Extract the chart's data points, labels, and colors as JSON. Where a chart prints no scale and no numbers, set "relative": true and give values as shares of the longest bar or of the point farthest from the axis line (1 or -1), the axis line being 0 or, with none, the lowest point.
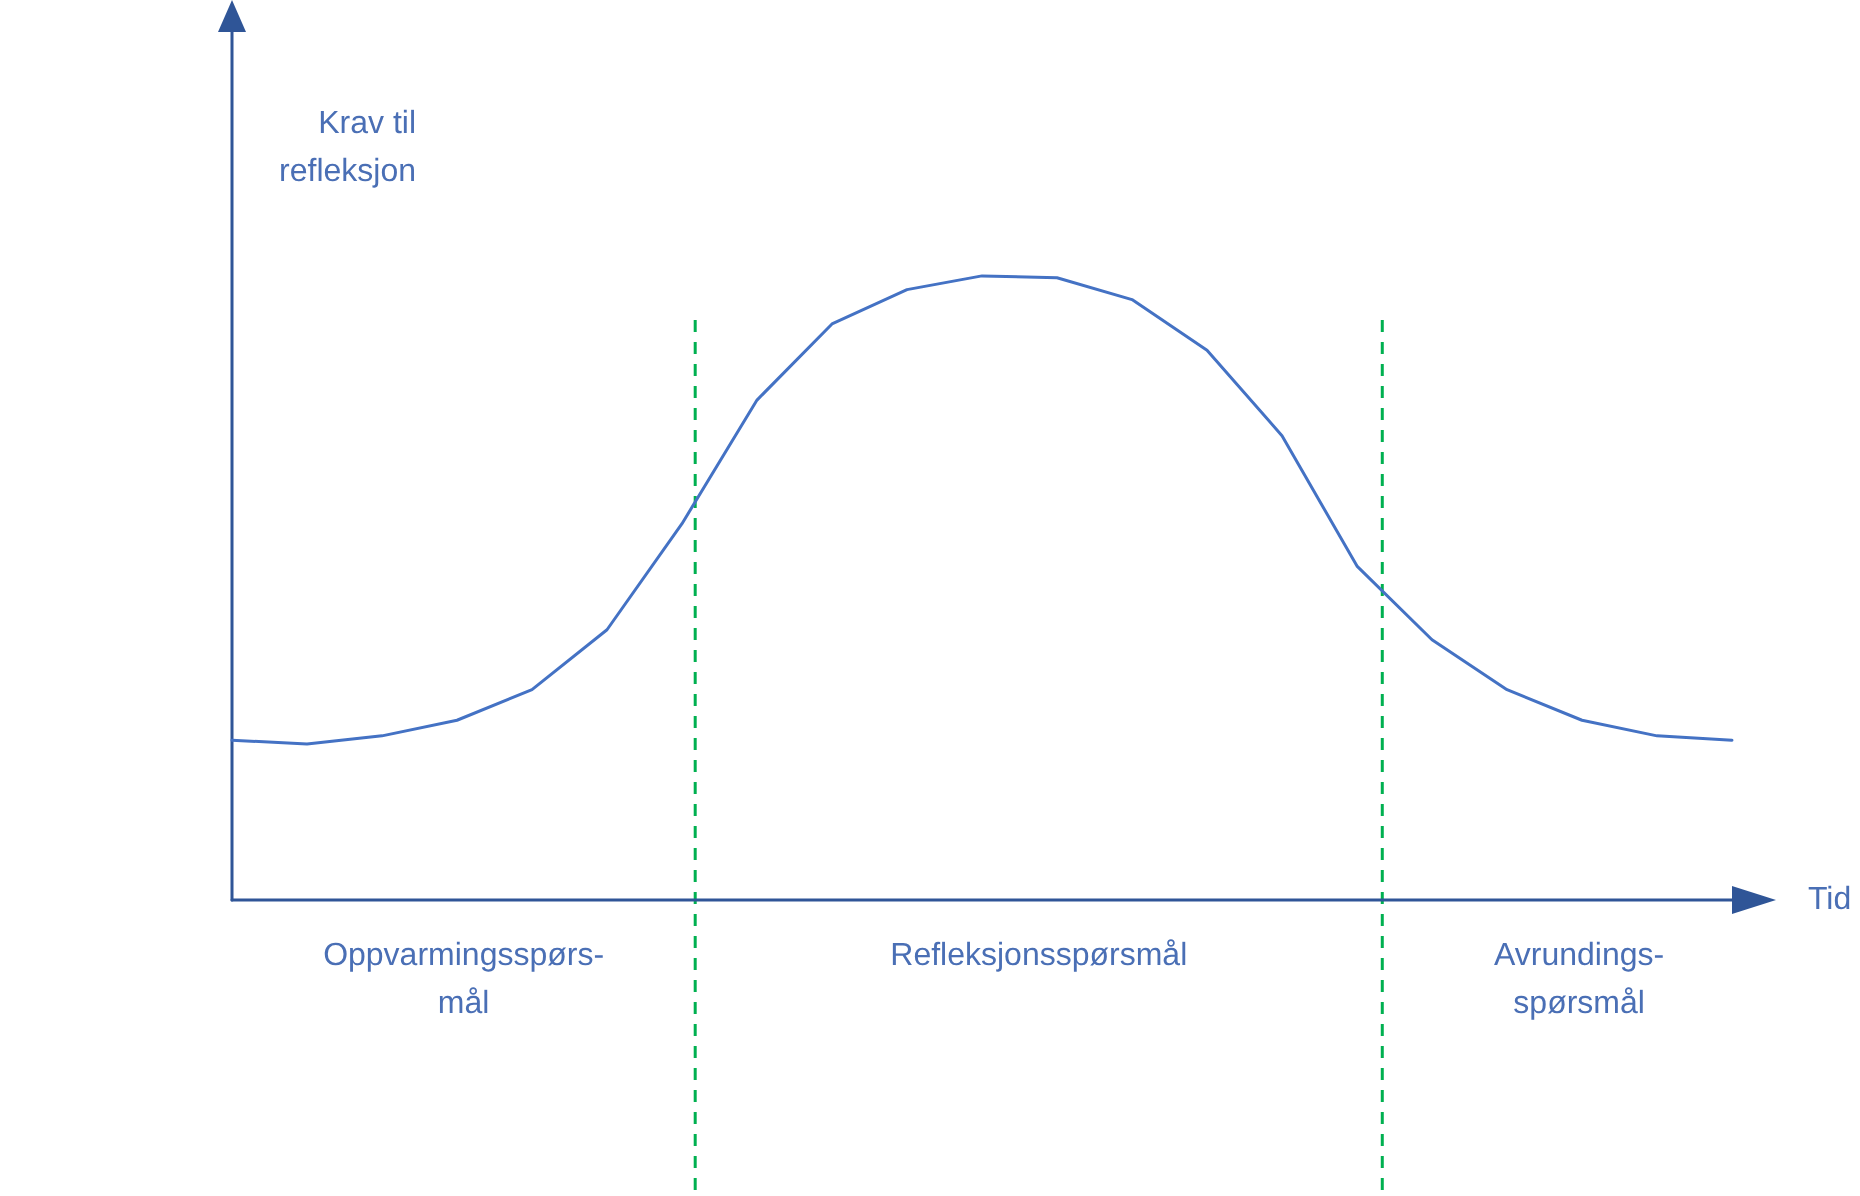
{
  "chart_data": {
    "type": "line",
    "relative": true,
    "xlabel": "Tid",
    "ylabel": "Krav til\nrefleksjon",
    "categories": [
      null,
      null,
      null,
      null,
      null,
      null,
      null,
      null,
      null,
      null,
      null,
      null,
      null,
      null,
      null,
      null,
      null,
      null,
      null,
      null,
      null
    ],
    "marker": "none",
    "line_style": "solid",
    "series": [
      {
        "color": "#4472c4",
        "values": [
          0.256,
          0.25,
          0.263,
          0.288,
          0.337,
          0.433,
          0.603,
          0.801,
          0.923,
          0.978,
          1,
          0.997,
          0.962,
          0.881,
          0.744,
          0.535,
          0.417,
          0.337,
          0.288,
          0.263,
          0.256
        ]
      }
    ],
    "annotations": [
      "Oppvarmingsspørs-\nmål",
      "Refleksjonsspørsmål",
      "Avrundings-\nspørsmål"
    ]
  }
}
